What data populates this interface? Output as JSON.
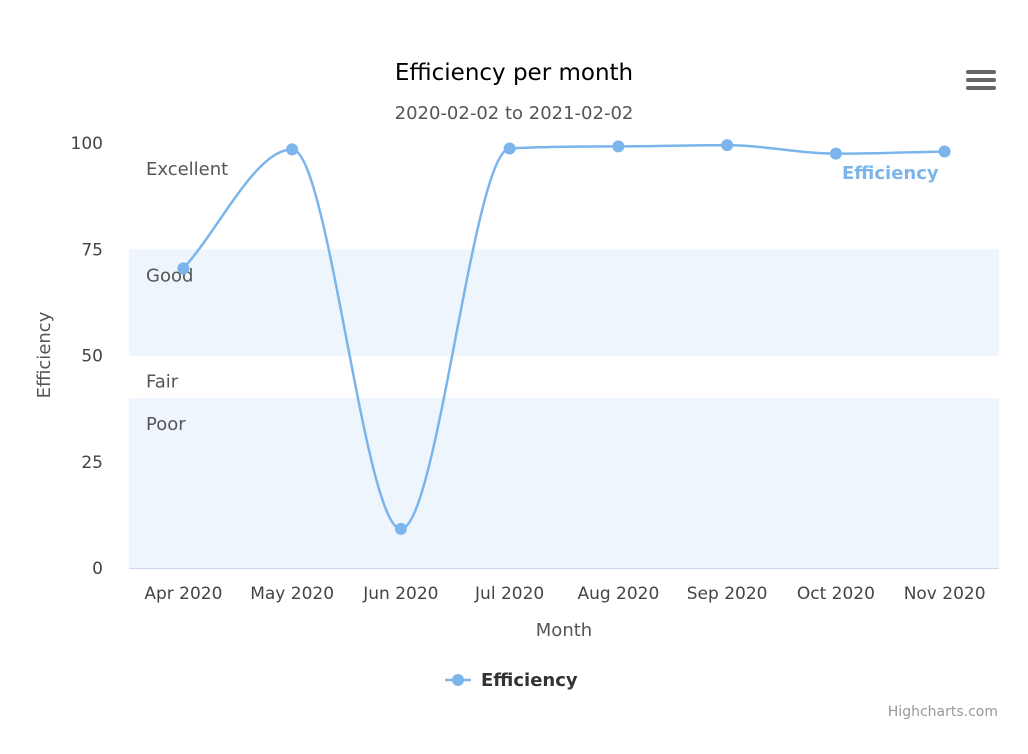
{
  "chart_data": {
    "type": "line",
    "title": "Efficiency per month",
    "subtitle": "2020-02-02 to 2021-02-02",
    "xlabel": "Month",
    "ylabel": "Efficiency",
    "categories": [
      "Apr 2020",
      "May 2020",
      "Jun 2020",
      "Jul 2020",
      "Aug 2020",
      "Sep 2020",
      "Oct 2020",
      "Nov 2020"
    ],
    "series": [
      {
        "name": "Efficiency",
        "values": [
          70.5,
          98.5,
          9.2,
          98.7,
          99.2,
          99.5,
          97.5,
          98.0
        ],
        "color": "#7cb5ec"
      }
    ],
    "ylim": [
      0,
      100
    ],
    "yticks": [
      "0",
      "25",
      "50",
      "75",
      "100"
    ],
    "plot_bands": [
      {
        "label": "Excellent",
        "from": 75,
        "to": 100,
        "color": "#ffffff"
      },
      {
        "label": "Good",
        "from": 50,
        "to": 75,
        "color": "#eef5fc"
      },
      {
        "label": "Fair",
        "from": 40,
        "to": 50,
        "color": "#ffffff"
      },
      {
        "label": "Poor",
        "from": 0,
        "to": 40,
        "color": "#eef5fc"
      }
    ],
    "smooth": true,
    "grid": false,
    "legend_position": "bottom-center"
  },
  "menu_icon": "hamburger-menu-icon",
  "credits": "Highcharts.com"
}
